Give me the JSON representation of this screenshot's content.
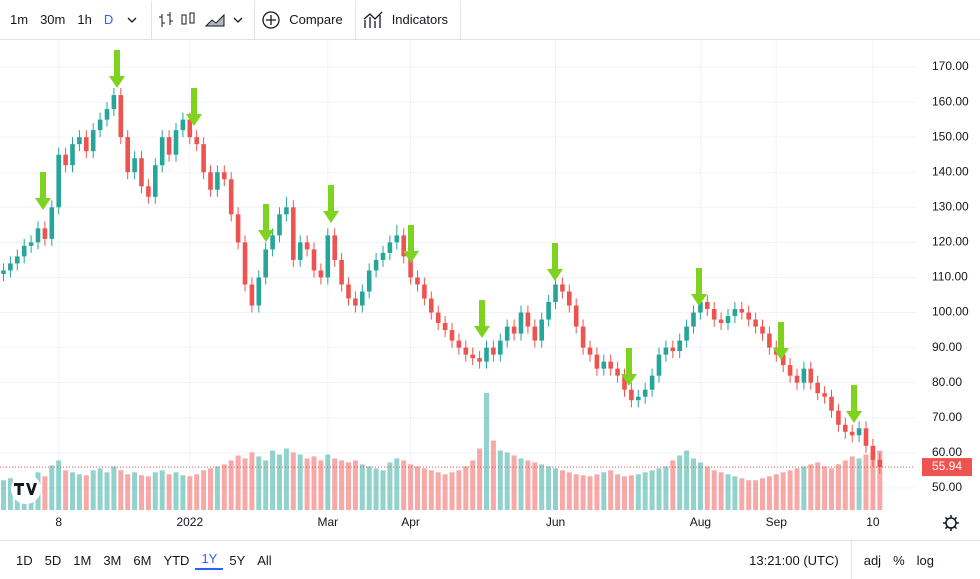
{
  "toolbar": {
    "intervals": [
      "1m",
      "30m",
      "1h",
      "D"
    ],
    "compare": "Compare",
    "indicators": "Indicators"
  },
  "bottom_bar": {
    "ranges": [
      "1D",
      "5D",
      "1M",
      "3M",
      "6M",
      "YTD",
      "1Y",
      "5Y",
      "All"
    ],
    "time": "13:21:00 (UTC)",
    "options": [
      "adj",
      "%",
      "log"
    ]
  },
  "chart_data": {
    "type": "candlestick",
    "categories": [
      null,
      null,
      null,
      null,
      null,
      null,
      null,
      null,
      "8",
      null,
      null,
      null,
      null,
      null,
      null,
      null,
      null,
      null,
      null,
      null,
      null,
      null,
      null,
      null,
      null,
      null,
      null,
      "2022",
      null,
      null,
      null,
      null,
      null,
      null,
      null,
      null,
      null,
      null,
      null,
      null,
      null,
      null,
      null,
      null,
      null,
      null,
      null,
      "Mar",
      null,
      null,
      null,
      null,
      null,
      null,
      null,
      null,
      null,
      null,
      null,
      "Apr",
      null,
      null,
      null,
      null,
      null,
      null,
      null,
      null,
      null,
      null,
      null,
      null,
      null,
      null,
      null,
      null,
      null,
      null,
      null,
      null,
      "Jun",
      null,
      null,
      null,
      null,
      null,
      null,
      null,
      null,
      null,
      null,
      null,
      null,
      null,
      null,
      null,
      null,
      null,
      null,
      null,
      null,
      "Aug",
      null,
      null,
      null,
      null,
      null,
      null,
      null,
      null,
      null,
      null,
      "Sep",
      null,
      null,
      null,
      null,
      null,
      null,
      null,
      null,
      null,
      null,
      null,
      null,
      null,
      "10",
      null
    ],
    "open": [
      111,
      112,
      114,
      116,
      119,
      120,
      124,
      121,
      130,
      145,
      142,
      148,
      150,
      146,
      152,
      155,
      158,
      162,
      150,
      140,
      144,
      136,
      133,
      142,
      150,
      145,
      152,
      155,
      150,
      148,
      140,
      135,
      140,
      138,
      128,
      120,
      108,
      102,
      110,
      118,
      122,
      128,
      130,
      115,
      120,
      118,
      112,
      110,
      122,
      115,
      108,
      104,
      102,
      106,
      112,
      115,
      117,
      120,
      122,
      116,
      110,
      108,
      104,
      100,
      97,
      95,
      92,
      90,
      88,
      87,
      86,
      90,
      88,
      92,
      96,
      94,
      100,
      96,
      92,
      98,
      103,
      108,
      106,
      102,
      96,
      90,
      88,
      84,
      86,
      84,
      82,
      78,
      75,
      76,
      78,
      82,
      88,
      90,
      89,
      92,
      96,
      100,
      103,
      101,
      98,
      97,
      99,
      101,
      100,
      98,
      96,
      94,
      90,
      88,
      85,
      82,
      80,
      84,
      80,
      77,
      76,
      72,
      68,
      66,
      65,
      67,
      62,
      58
    ],
    "high": [
      114,
      116,
      118,
      121,
      122,
      126,
      126,
      132,
      147,
      147,
      150,
      152,
      152,
      154,
      157,
      160,
      164,
      164,
      152,
      146,
      146,
      138,
      144,
      152,
      152,
      154,
      157,
      157,
      152,
      150,
      142,
      142,
      142,
      140,
      130,
      122,
      110,
      112,
      120,
      124,
      130,
      133,
      132,
      122,
      122,
      120,
      114,
      124,
      124,
      117,
      110,
      106,
      108,
      114,
      117,
      119,
      122,
      125,
      124,
      118,
      112,
      110,
      106,
      102,
      99,
      97,
      94,
      92,
      90,
      89,
      92,
      92,
      94,
      98,
      98,
      102,
      102,
      98,
      100,
      105,
      110,
      110,
      108,
      104,
      98,
      92,
      90,
      88,
      88,
      86,
      84,
      80,
      78,
      80,
      84,
      90,
      92,
      92,
      94,
      98,
      102,
      105,
      105,
      103,
      100,
      101,
      103,
      103,
      102,
      100,
      98,
      96,
      92,
      90,
      87,
      84,
      86,
      86,
      82,
      79,
      78,
      74,
      70,
      68,
      69,
      69,
      64,
      60
    ],
    "low": [
      109,
      110,
      112,
      114,
      117,
      118,
      119,
      119,
      128,
      140,
      140,
      146,
      144,
      144,
      150,
      153,
      156,
      148,
      138,
      138,
      134,
      131,
      131,
      140,
      143,
      143,
      150,
      148,
      146,
      138,
      133,
      133,
      136,
      126,
      118,
      106,
      100,
      100,
      108,
      116,
      120,
      126,
      113,
      113,
      116,
      110,
      108,
      108,
      113,
      106,
      102,
      100,
      100,
      104,
      110,
      113,
      115,
      118,
      114,
      108,
      106,
      102,
      98,
      95,
      93,
      90,
      88,
      86,
      85,
      84,
      84,
      86,
      86,
      90,
      92,
      92,
      94,
      90,
      90,
      96,
      101,
      104,
      100,
      94,
      88,
      86,
      82,
      82,
      82,
      80,
      76,
      73,
      73,
      74,
      76,
      80,
      86,
      87,
      87,
      90,
      94,
      98,
      99,
      96,
      95,
      95,
      97,
      98,
      96,
      94,
      92,
      88,
      86,
      83,
      80,
      78,
      78,
      78,
      75,
      74,
      70,
      66,
      64,
      63,
      63,
      60,
      56,
      54
    ],
    "close": [
      112,
      114,
      116,
      119,
      120,
      124,
      121,
      130,
      145,
      142,
      148,
      150,
      146,
      152,
      155,
      158,
      162,
      150,
      140,
      144,
      136,
      133,
      142,
      150,
      145,
      152,
      155,
      150,
      148,
      140,
      135,
      140,
      138,
      128,
      120,
      108,
      102,
      110,
      118,
      122,
      128,
      130,
      115,
      120,
      118,
      112,
      110,
      122,
      115,
      108,
      104,
      102,
      106,
      112,
      115,
      117,
      120,
      122,
      116,
      110,
      108,
      104,
      100,
      97,
      95,
      92,
      90,
      88,
      87,
      86,
      90,
      88,
      92,
      96,
      94,
      100,
      96,
      92,
      98,
      103,
      108,
      106,
      102,
      96,
      90,
      88,
      84,
      86,
      84,
      82,
      78,
      75,
      76,
      78,
      82,
      88,
      90,
      89,
      92,
      96,
      100,
      103,
      101,
      98,
      97,
      99,
      101,
      100,
      98,
      96,
      94,
      90,
      88,
      85,
      82,
      80,
      84,
      80,
      77,
      76,
      72,
      68,
      66,
      65,
      67,
      62,
      58,
      55.94
    ],
    "volume": [
      30,
      32,
      28,
      35,
      30,
      38,
      34,
      45,
      50,
      40,
      38,
      36,
      35,
      40,
      42,
      38,
      44,
      40,
      36,
      38,
      35,
      34,
      38,
      40,
      36,
      38,
      35,
      34,
      36,
      40,
      42,
      44,
      46,
      50,
      55,
      52,
      58,
      54,
      50,
      60,
      56,
      62,
      58,
      56,
      52,
      54,
      50,
      56,
      52,
      50,
      48,
      50,
      46,
      44,
      42,
      40,
      48,
      52,
      50,
      46,
      44,
      42,
      40,
      38,
      36,
      38,
      40,
      44,
      50,
      62,
      118,
      70,
      60,
      58,
      55,
      52,
      50,
      48,
      46,
      44,
      42,
      40,
      38,
      36,
      35,
      34,
      36,
      38,
      40,
      36,
      34,
      35,
      36,
      38,
      40,
      42,
      44,
      50,
      55,
      60,
      52,
      48,
      44,
      40,
      38,
      36,
      34,
      32,
      30,
      30,
      32,
      34,
      36,
      38,
      40,
      42,
      44,
      46,
      48,
      44,
      42,
      46,
      50,
      54,
      52,
      56,
      58,
      60
    ],
    "up_color": "#26a69a",
    "down_color": "#ef5350",
    "ylim": [
      43.7,
      177.7
    ],
    "yticks": [
      {
        "value": 50,
        "label": "50.00"
      },
      {
        "value": 60,
        "label": "60.00"
      },
      {
        "value": 70,
        "label": "70.00"
      },
      {
        "value": 80,
        "label": "80.00"
      },
      {
        "value": 90,
        "label": "90.00"
      },
      {
        "value": 100,
        "label": "100.00"
      },
      {
        "value": 110,
        "label": "110.00"
      },
      {
        "value": 120,
        "label": "120.00"
      },
      {
        "value": 130,
        "label": "130.00"
      },
      {
        "value": 140,
        "label": "140.00"
      },
      {
        "value": 150,
        "label": "150.00"
      },
      {
        "value": 160,
        "label": "160.00"
      },
      {
        "value": 170,
        "label": "170.00"
      }
    ],
    "grid": true
  }
}
